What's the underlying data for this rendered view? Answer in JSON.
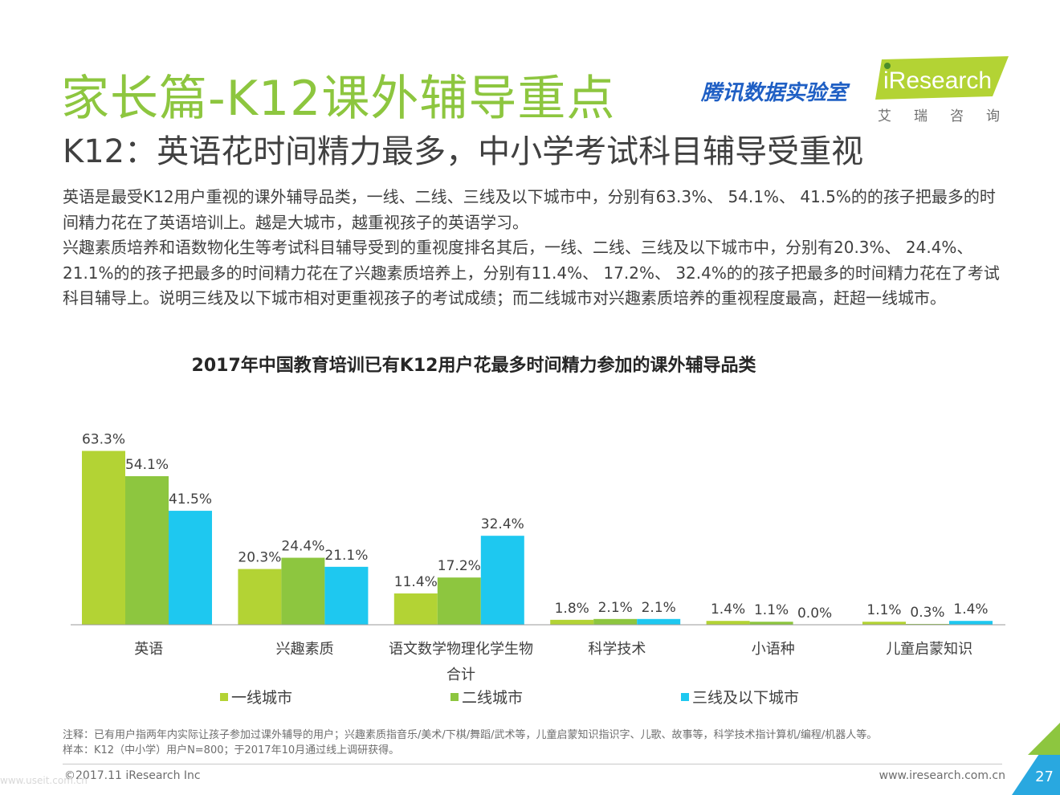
{
  "header": {
    "title": "家长篇-K12课外辅导重点",
    "subtitle": "K12：英语花时间精力最多，中小学考试科目辅导受重视",
    "tencent_logo": "腾讯数据实验室",
    "iresearch_logo": "iResearch",
    "iresearch_cn": "艾瑞咨询"
  },
  "body": {
    "paragraph1": "英语是最受K12用户重视的课外辅导品类，一线、二线、三线及以下城市中，分别有63.3%、 54.1%、 41.5%的的孩子把最多的时间精力花在了英语培训上。越是大城市，越重视孩子的英语学习。",
    "paragraph2": "兴趣素质培养和语数物化生等考试科目辅导受到的重视度排名其后，一线、二线、三线及以下城市中，分别有20.3%、 24.4%、 21.1%的的孩子把最多的时间精力花在了兴趣素质培养上，分别有11.4%、 17.2%、 32.4%的的孩子把最多的时间精力花在了考试科目辅导上。说明三线及以下城市相对更重视孩子的考试成绩；而二线城市对兴趣素质培养的重视程度最高，赶超一线城市。"
  },
  "chart_data": {
    "type": "bar",
    "title": "2017年中国教育培训已有K12用户花最多时间精力参加的课外辅导品类",
    "categories": [
      "英语",
      "兴趣素质",
      "语文数学物理化学生物合计",
      "科学技术",
      "小语种",
      "儿童启蒙知识"
    ],
    "category_lines": [
      [
        "英语"
      ],
      [
        "兴趣素质"
      ],
      [
        "语文数学物理化学生物",
        "合计"
      ],
      [
        "科学技术"
      ],
      [
        "小语种"
      ],
      [
        "儿童启蒙知识"
      ]
    ],
    "series": [
      {
        "name": "一线城市",
        "color": "#b3d334",
        "values": [
          63.3,
          20.3,
          11.4,
          1.8,
          1.4,
          1.1
        ]
      },
      {
        "name": "二线城市",
        "color": "#8dc63f",
        "values": [
          54.1,
          24.4,
          17.2,
          2.1,
          1.1,
          0.3
        ]
      },
      {
        "name": "三线及以下城市",
        "color": "#1ec8f0",
        "values": [
          41.5,
          21.1,
          32.4,
          2.1,
          0.0,
          1.4
        ]
      }
    ],
    "value_suffix": "%",
    "ylim": [
      0,
      70
    ],
    "grid": false,
    "legend_position": "bottom"
  },
  "footer": {
    "note": "注释：已有用户指两年内实际让孩子参加过课外辅导的用户；兴趣素质指音乐/美术/下棋/舞蹈/武术等，儿童启蒙知识指识字、儿歌、故事等，科学技术指计算机/编程/机器人等。",
    "sample": "样本：K12（中小学）用户N=800；于2017年10月通过线上调研获得。",
    "copyright": "©2017.11 iResearch Inc",
    "website": "www.iresearch.com.cn",
    "page_number": "27",
    "watermark": "www.useit.com.cn"
  },
  "colors": {
    "title_green": "#8dc63f",
    "tencent_blue": "#1f5fc4",
    "corner_blue": "#29a8e0",
    "corner_green": "#8dc63f"
  }
}
